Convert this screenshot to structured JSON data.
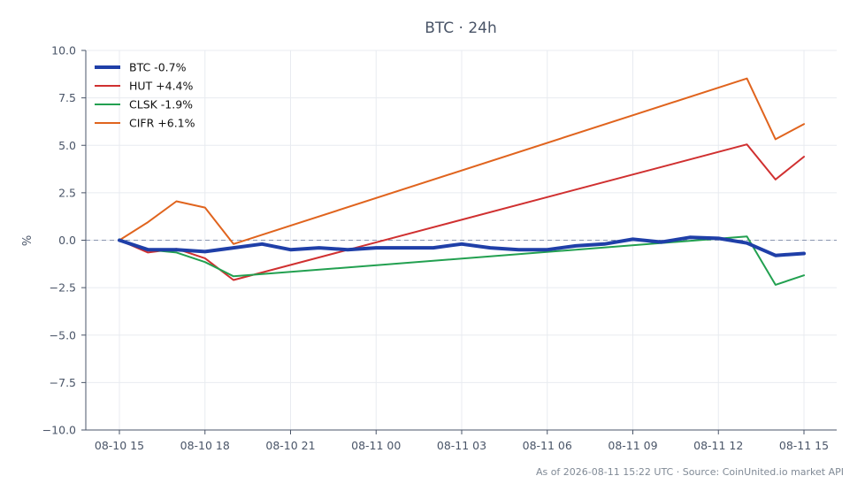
{
  "chart_data": {
    "type": "line",
    "title": "BTC · 24h",
    "ylabel": "%",
    "xlabel": "",
    "ylim": [
      -10,
      10
    ],
    "yticks": [
      10.0,
      7.5,
      5.0,
      2.5,
      0.0,
      -2.5,
      -5.0,
      -7.5,
      -10.0
    ],
    "ytick_labels": [
      "10.0",
      "7.5",
      "5.0",
      "2.5",
      "0.0",
      "−2.5",
      "−5.0",
      "−7.5",
      "−10.0"
    ],
    "x": [
      "08-10 15",
      "08-10 16",
      "08-10 17",
      "08-10 18",
      "08-10 19",
      "08-10 20",
      "08-10 21",
      "08-10 22",
      "08-10 23",
      "08-11 00",
      "08-11 01",
      "08-11 02",
      "08-11 03",
      "08-11 04",
      "08-11 05",
      "08-11 06",
      "08-11 07",
      "08-11 08",
      "08-11 09",
      "08-11 10",
      "08-11 11",
      "08-11 12",
      "08-11 13",
      "08-11 14",
      "08-11 15"
    ],
    "xticks": [
      "08-10 15",
      "08-10 18",
      "08-10 21",
      "08-11 00",
      "08-11 03",
      "08-11 06",
      "08-11 09",
      "08-11 12",
      "08-11 15"
    ],
    "reference_line": 0,
    "grid": true,
    "legend_position": "top-left",
    "series": [
      {
        "name": "BTC -0.7%",
        "color": "#1f3fa8",
        "emphasis": true,
        "values": [
          0.0,
          -0.5,
          -0.5,
          -0.6,
          -0.4,
          -0.2,
          -0.5,
          -0.4,
          -0.5,
          -0.4,
          -0.4,
          -0.4,
          -0.2,
          -0.4,
          -0.5,
          -0.5,
          -0.3,
          -0.2,
          0.05,
          -0.1,
          0.15,
          0.1,
          -0.15,
          -0.8,
          -0.7
        ]
      },
      {
        "name": "HUT +4.4%",
        "color": "#d03030",
        "emphasis": false,
        "points": [
          [
            0,
            0.0
          ],
          [
            1,
            -0.65
          ],
          [
            2,
            -0.45
          ],
          [
            3,
            -0.95
          ],
          [
            4,
            -2.1
          ],
          [
            22,
            5.05
          ],
          [
            23,
            3.2
          ],
          [
            24,
            4.4
          ]
        ]
      },
      {
        "name": "CLSK -1.9%",
        "color": "#22a050",
        "emphasis": false,
        "points": [
          [
            0,
            0.05
          ],
          [
            1,
            -0.5
          ],
          [
            2,
            -0.65
          ],
          [
            3,
            -1.15
          ],
          [
            4,
            -1.9
          ],
          [
            22,
            0.2
          ],
          [
            23,
            -2.35
          ],
          [
            24,
            -1.85
          ]
        ]
      },
      {
        "name": "CIFR +6.1%",
        "color": "#e0641e",
        "emphasis": false,
        "points": [
          [
            0,
            0.0
          ],
          [
            1,
            0.95
          ],
          [
            2,
            2.05
          ],
          [
            3,
            1.72
          ],
          [
            4,
            -0.2
          ],
          [
            22,
            8.52
          ],
          [
            23,
            5.32
          ],
          [
            24,
            6.12
          ]
        ]
      }
    ]
  },
  "footer": "As of 2026-08-11 15:22 UTC · Source: CoinUnited.io market API"
}
